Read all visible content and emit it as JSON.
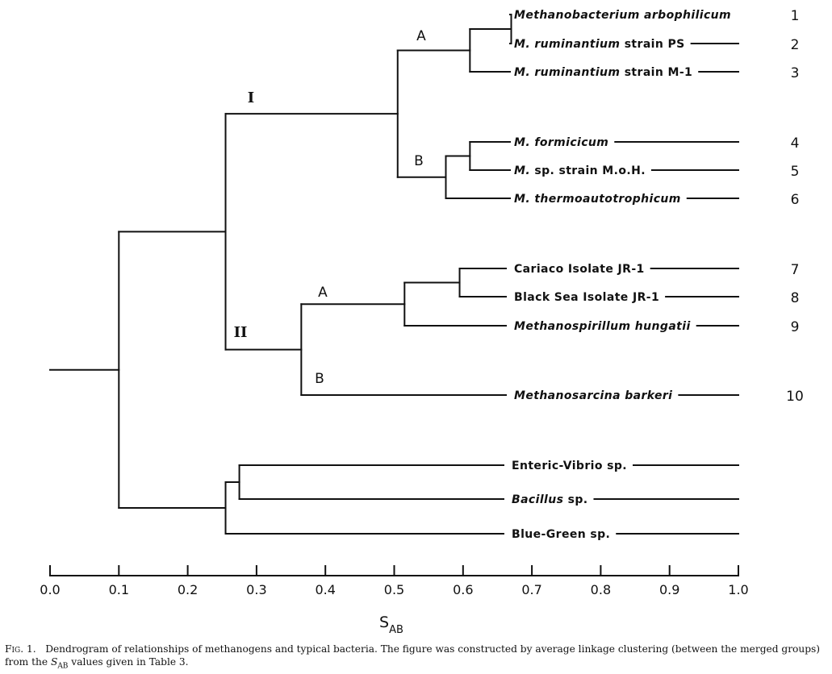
{
  "chart_data": {
    "type": "dendrogram",
    "xlabel": "S",
    "xlabel_sub": "AB",
    "xlim": [
      0.0,
      1.0
    ],
    "ticks": [
      "0.0",
      "0.1",
      "0.2",
      "0.3",
      "0.4",
      "0.5",
      "0.6",
      "0.7",
      "0.8",
      "0.9",
      "1.0"
    ],
    "leaves": [
      {
        "id": "L1",
        "number": "1",
        "segments": [
          {
            "text": "Methanobacterium arbophilicum",
            "italic": true
          }
        ],
        "has_tail": false
      },
      {
        "id": "L2",
        "number": "2",
        "segments": [
          {
            "text": "M. ruminantium",
            "italic": true
          },
          {
            "text": " strain PS",
            "italic": false
          }
        ],
        "has_tail": true
      },
      {
        "id": "L3",
        "number": "3",
        "segments": [
          {
            "text": "M. ruminantium",
            "italic": true
          },
          {
            "text": " strain M-1",
            "italic": false
          }
        ],
        "has_tail": true
      },
      {
        "id": "L4",
        "number": "4",
        "segments": [
          {
            "text": "M. formicicum",
            "italic": true
          }
        ],
        "has_tail": true
      },
      {
        "id": "L5",
        "number": "5",
        "segments": [
          {
            "text": "M.",
            "italic": true
          },
          {
            "text": " sp. strain M.o.H.",
            "italic": false
          }
        ],
        "has_tail": true
      },
      {
        "id": "L6",
        "number": "6",
        "segments": [
          {
            "text": "M. thermoautotrophicum",
            "italic": true
          }
        ],
        "has_tail": true
      },
      {
        "id": "L7",
        "number": "7",
        "segments": [
          {
            "text": "Cariaco Isolate JR-1",
            "italic": false
          }
        ],
        "has_tail": true
      },
      {
        "id": "L8",
        "number": "8",
        "segments": [
          {
            "text": "Black Sea Isolate JR-1",
            "italic": false
          }
        ],
        "has_tail": true
      },
      {
        "id": "L9",
        "number": "9",
        "segments": [
          {
            "text": "Methanospirillum hungatii",
            "italic": true
          }
        ],
        "has_tail": true
      },
      {
        "id": "L10",
        "number": "10",
        "segments": [
          {
            "text": "Methanosarcina barkeri",
            "italic": true
          }
        ],
        "has_tail": true
      },
      {
        "id": "L11",
        "number": "",
        "segments": [
          {
            "text": "Enteric-Vibrio sp.",
            "italic": false
          }
        ],
        "has_tail": true
      },
      {
        "id": "L12",
        "number": "",
        "segments": [
          {
            "text": "Bacillus",
            "italic": true
          },
          {
            "text": " sp.",
            "italic": false
          }
        ],
        "has_tail": true
      },
      {
        "id": "L13",
        "number": "",
        "segments": [
          {
            "text": "Blue-Green sp.",
            "italic": false
          }
        ],
        "has_tail": true
      }
    ],
    "merges": [
      {
        "id": "n12",
        "children": [
          "L1",
          "L2"
        ],
        "s_ab": 0.67
      },
      {
        "id": "nIA",
        "children": [
          "n12",
          "L3"
        ],
        "s_ab": 0.61
      },
      {
        "id": "n45",
        "children": [
          "L4",
          "L5"
        ],
        "s_ab": 0.61
      },
      {
        "id": "nIB",
        "children": [
          "n45",
          "L6"
        ],
        "s_ab": 0.575
      },
      {
        "id": "nI",
        "children": [
          "nIA",
          "nIB"
        ],
        "s_ab": 0.505
      },
      {
        "id": "n78",
        "children": [
          "L7",
          "L8"
        ],
        "s_ab": 0.595
      },
      {
        "id": "nIIA",
        "children": [
          "n78",
          "L9"
        ],
        "s_ab": 0.515
      },
      {
        "id": "nII",
        "children": [
          "nIIA",
          "L10"
        ],
        "s_ab": 0.365
      },
      {
        "id": "nMeth",
        "children": [
          "nI",
          "nII"
        ],
        "s_ab": 0.255
      },
      {
        "id": "nEB",
        "children": [
          "L11",
          "L12"
        ],
        "s_ab": 0.275
      },
      {
        "id": "nBact",
        "children": [
          "nEB",
          "L13"
        ],
        "s_ab": 0.255
      },
      {
        "id": "nTop",
        "children": [
          "nMeth",
          "nBact"
        ],
        "s_ab": 0.1
      }
    ],
    "root": "nTop",
    "root_stem_to": 0.0,
    "group_labels": [
      {
        "node": "nI",
        "text": "I",
        "style": "roman"
      },
      {
        "node": "nII",
        "text": "II",
        "style": "roman"
      },
      {
        "node": "nIA",
        "text": "A",
        "style": "letter"
      },
      {
        "node": "nIB",
        "text": "B",
        "style": "letter"
      },
      {
        "node": "nIIA",
        "text": "A",
        "style": "letter"
      },
      {
        "node": "nII",
        "text": "B",
        "style": "letter-lower"
      }
    ]
  },
  "caption": {
    "label": "Fig. 1.",
    "before": "Dendrogram of relationships of methanogens and typical bacteria. The figure was constructed by average linkage clustering (between the merged groups) from the ",
    "symbol": "S",
    "symbol_sub": "AB",
    "after": " values given in Table 3."
  }
}
